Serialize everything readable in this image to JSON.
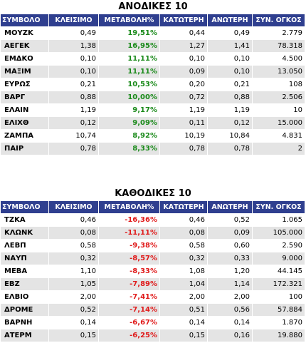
{
  "headers": [
    "ΣΥΜΒΟΛΟ",
    "ΚΛΕΙΣΙΜΟ",
    "ΜΕΤΑΒΟΛΗ%",
    "ΚΑΤΩΤΕΡΗ",
    "ΑΝΩΤΕΡΗ",
    "ΣΥΝ. ΟΓΚΟΣ"
  ],
  "gainers": {
    "title": "ΑΝΟΔΙΚΕΣ 10",
    "rows": [
      [
        "ΜΟΥΖΚ",
        "0,49",
        "19,51%",
        "0,44",
        "0,49",
        "2.779"
      ],
      [
        "ΑΕΓΕΚ",
        "1,38",
        "16,95%",
        "1,27",
        "1,41",
        "78.318"
      ],
      [
        "ΕΜΔΚΟ",
        "0,10",
        "11,11%",
        "0,10",
        "0,10",
        "4.500"
      ],
      [
        "ΜΑΞΙΜ",
        "0,10",
        "11,11%",
        "0,09",
        "0,10",
        "13.050"
      ],
      [
        "ΕΥΡΩΣ",
        "0,21",
        "10,53%",
        "0,20",
        "0,21",
        "108"
      ],
      [
        "ΒΑΡΓ",
        "0,88",
        "10,00%",
        "0,72",
        "0,88",
        "2.506"
      ],
      [
        "ΕΛΑΙΝ",
        "1,19",
        "9,17%",
        "1,19",
        "1,19",
        "10"
      ],
      [
        "ΕΛΙΧΘ",
        "0,12",
        "9,09%",
        "0,11",
        "0,12",
        "15.000"
      ],
      [
        "ΖΑΜΠΑ",
        "10,74",
        "8,92%",
        "10,19",
        "10,84",
        "4.831"
      ],
      [
        "ΠΑΙΡ",
        "0,78",
        "8,33%",
        "0,78",
        "0,78",
        "2"
      ]
    ]
  },
  "losers": {
    "title": "ΚΑΘΟΔΙΚΕΣ 10",
    "rows": [
      [
        "ΤΖΚΑ",
        "0,46",
        "-16,36%",
        "0,46",
        "0,52",
        "1.065"
      ],
      [
        "ΚΛΩΝΚ",
        "0,08",
        "-11,11%",
        "0,08",
        "0,09",
        "105.000"
      ],
      [
        "ΛΕΒΠ",
        "0,58",
        "-9,38%",
        "0,58",
        "0,60",
        "2.590"
      ],
      [
        "ΝΑΥΠ",
        "0,32",
        "-8,57%",
        "0,32",
        "0,33",
        "9.000"
      ],
      [
        "ΜΕΒΑ",
        "1,10",
        "-8,33%",
        "1,08",
        "1,20",
        "44.145"
      ],
      [
        "ΕΒΖ",
        "1,05",
        "-7,89%",
        "1,04",
        "1,14",
        "172.321"
      ],
      [
        "ΕΛΒΙΟ",
        "2,00",
        "-7,41%",
        "2,00",
        "2,00",
        "100"
      ],
      [
        "ΔΡΟΜΕ",
        "0,52",
        "-7,14%",
        "0,51",
        "0,56",
        "57.884"
      ],
      [
        "ΒΑΡΝΗ",
        "0,14",
        "-6,67%",
        "0,14",
        "0,14",
        "1.870"
      ],
      [
        "ΑΤΕΡΜ",
        "0,15",
        "-6,25%",
        "0,15",
        "0,16",
        "19.880"
      ]
    ]
  },
  "colors": {
    "header_bg": "#2f3f8f",
    "up": "#1a8a1a",
    "down": "#e01a1a",
    "stripe": "#e4e4e4"
  }
}
